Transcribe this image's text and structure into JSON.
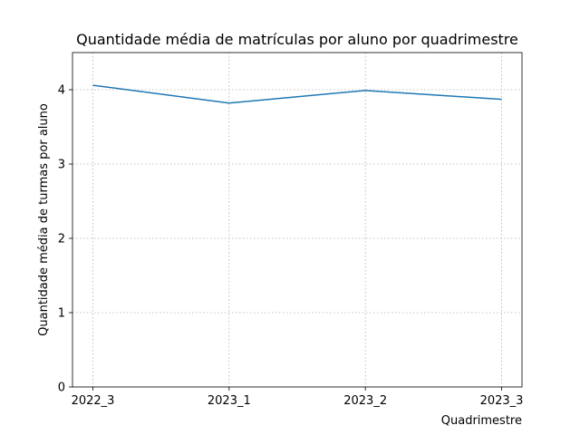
{
  "chart_data": {
    "type": "line",
    "title": "Quantidade média de matrículas por aluno por quadrimestre",
    "xlabel": "Quadrimestre",
    "ylabel": "Quantidade média de turmas por aluno",
    "categories": [
      "2022_3",
      "2023_1",
      "2023_2",
      "2023_3"
    ],
    "series": [
      {
        "values": [
          4.06,
          3.82,
          3.99,
          3.87
        ]
      }
    ],
    "ylim": [
      0,
      4.5
    ],
    "yticks": [
      0,
      1,
      2,
      3,
      4
    ],
    "grid": true,
    "line_color": "#1f77b4"
  }
}
